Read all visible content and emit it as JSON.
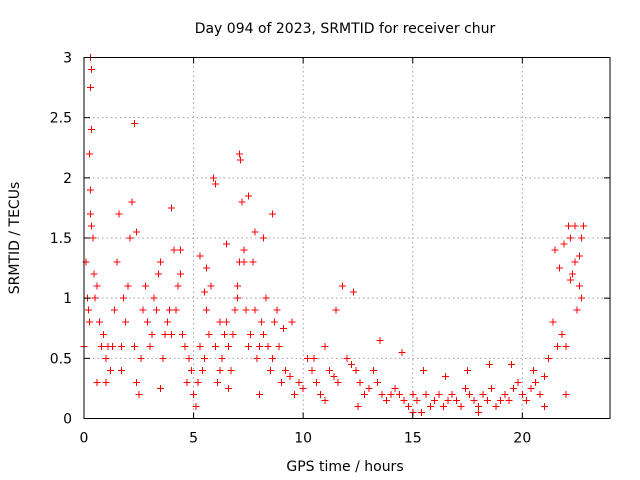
{
  "chart_data": {
    "type": "scatter",
    "title": "Day 094 of 2023, SRMTID for receiver chur",
    "xlabel": "GPS time / hours",
    "ylabel": "SRMTID / TECUs",
    "xlim": [
      0,
      24
    ],
    "ylim": [
      0,
      3
    ],
    "xticks": [
      0,
      5,
      10,
      15,
      20
    ],
    "xtick_labels": [
      "0",
      "5",
      "10",
      "15",
      "20"
    ],
    "yticks": [
      0,
      0.5,
      1,
      1.5,
      2,
      2.5,
      3
    ],
    "ytick_labels": [
      "0",
      "0.5",
      "1",
      "1.5",
      "2",
      "2.5",
      "3"
    ],
    "grid": true,
    "marker": "+",
    "color": "#ff0000",
    "series": [
      {
        "name": "SRMTID",
        "x": [
          0.0,
          0.1,
          0.15,
          0.2,
          0.25,
          0.3,
          0.3,
          0.35,
          0.4,
          0.45,
          0.5,
          0.6,
          0.7,
          0.8,
          0.9,
          1.0,
          1.1,
          1.2,
          1.3,
          1.4,
          1.5,
          1.6,
          1.7,
          1.8,
          1.9,
          2.0,
          2.1,
          2.2,
          2.3,
          2.4,
          2.5,
          2.6,
          2.7,
          2.8,
          2.9,
          3.0,
          3.1,
          3.2,
          3.3,
          3.4,
          3.5,
          3.6,
          3.7,
          3.8,
          3.9,
          4.0,
          4.1,
          4.2,
          4.3,
          4.4,
          4.5,
          4.6,
          4.7,
          4.8,
          4.9,
          5.0,
          5.1,
          5.2,
          5.3,
          5.4,
          5.5,
          5.6,
          5.7,
          5.8,
          5.9,
          6.0,
          6.1,
          6.2,
          6.3,
          6.4,
          6.5,
          6.6,
          6.7,
          6.8,
          6.9,
          7.0,
          7.1,
          7.2,
          7.3,
          7.4,
          7.5,
          7.6,
          7.7,
          7.8,
          7.9,
          8.0,
          8.1,
          8.2,
          8.3,
          8.4,
          8.5,
          8.6,
          8.7,
          8.8,
          8.9,
          9.0,
          9.2,
          9.4,
          9.6,
          9.8,
          10.0,
          10.2,
          10.4,
          10.6,
          10.8,
          11.0,
          11.2,
          11.4,
          11.6,
          11.8,
          12.0,
          12.2,
          12.4,
          12.6,
          12.8,
          13.0,
          13.2,
          13.4,
          13.6,
          13.8,
          14.0,
          14.2,
          14.4,
          14.6,
          14.8,
          15.0,
          15.2,
          15.4,
          15.6,
          15.8,
          16.0,
          16.2,
          16.4,
          16.6,
          16.8,
          17.0,
          17.2,
          17.4,
          17.6,
          17.8,
          18.0,
          18.2,
          18.4,
          18.6,
          18.8,
          19.0,
          19.2,
          19.4,
          19.6,
          19.8,
          20.0,
          20.2,
          20.4,
          20.6,
          20.8,
          21.0,
          21.2,
          21.4,
          21.6,
          21.8,
          22.0,
          22.1,
          22.2,
          22.3,
          22.4,
          22.5,
          22.6,
          22.7,
          22.8,
          0.25,
          0.3,
          0.35,
          7.1,
          7.15,
          7.5,
          6.0,
          5.6,
          0.3,
          0.35,
          2.3,
          2.4,
          4.0,
          4.4,
          5.3,
          5.5,
          6.2,
          6.5,
          7.0,
          7.3,
          7.8,
          8.2,
          8.6,
          9.1,
          9.5,
          10.5,
          11.5,
          12.3,
          13.5,
          14.5,
          15.5,
          16.5,
          17.5,
          18.5,
          19.5,
          20.5,
          21.5,
          21.7,
          21.9,
          22.2,
          22.4,
          22.6,
          22.7,
          0.6,
          1.0,
          1.7,
          3.5,
          6.6,
          8.0,
          11.0,
          12.5,
          15.0,
          18.0,
          21.0,
          22.0
        ],
        "y": [
          0.6,
          1.3,
          1.0,
          0.9,
          2.2,
          2.75,
          1.7,
          1.6,
          1.5,
          1.2,
          1.0,
          1.1,
          0.8,
          0.6,
          0.7,
          0.5,
          0.6,
          0.4,
          0.6,
          0.9,
          1.3,
          1.7,
          0.6,
          1.0,
          0.8,
          1.1,
          1.5,
          1.8,
          0.6,
          0.3,
          0.2,
          0.5,
          0.9,
          1.1,
          0.8,
          0.6,
          0.7,
          1.0,
          0.9,
          1.2,
          1.3,
          0.5,
          0.7,
          0.8,
          0.9,
          0.7,
          1.4,
          0.9,
          1.1,
          1.2,
          0.7,
          0.6,
          0.3,
          0.5,
          0.4,
          0.2,
          0.1,
          0.3,
          0.6,
          0.4,
          0.5,
          0.9,
          0.7,
          1.1,
          2.0,
          0.6,
          0.3,
          0.4,
          0.5,
          0.7,
          0.8,
          0.6,
          0.4,
          0.7,
          0.9,
          1.0,
          1.3,
          1.8,
          1.4,
          0.9,
          0.6,
          0.7,
          1.3,
          0.9,
          0.5,
          0.6,
          0.8,
          0.7,
          1.0,
          0.6,
          0.4,
          0.5,
          0.8,
          0.9,
          0.6,
          0.3,
          0.4,
          0.35,
          0.2,
          0.3,
          0.25,
          0.5,
          0.4,
          0.3,
          0.2,
          0.6,
          0.4,
          0.35,
          0.3,
          1.1,
          0.5,
          0.45,
          0.4,
          0.3,
          0.2,
          0.25,
          0.4,
          0.3,
          0.2,
          0.15,
          0.2,
          0.25,
          0.2,
          0.15,
          0.1,
          0.2,
          0.15,
          0.05,
          0.2,
          0.1,
          0.15,
          0.2,
          0.1,
          0.15,
          0.2,
          0.15,
          0.1,
          0.25,
          0.2,
          0.15,
          0.1,
          0.2,
          0.15,
          0.25,
          0.1,
          0.15,
          0.2,
          0.15,
          0.25,
          0.3,
          0.2,
          0.15,
          0.25,
          0.3,
          0.2,
          0.35,
          0.5,
          0.8,
          0.6,
          0.7,
          0.6,
          1.6,
          1.5,
          1.2,
          1.3,
          0.9,
          1.1,
          1.0,
          1.6,
          0.8,
          3.0,
          2.4,
          2.2,
          2.15,
          1.85,
          1.95,
          1.25,
          1.9,
          2.9,
          2.45,
          1.55,
          1.75,
          1.4,
          1.35,
          1.05,
          0.8,
          1.45,
          1.1,
          1.3,
          1.55,
          1.5,
          1.7,
          0.75,
          0.8,
          0.5,
          0.9,
          1.05,
          0.65,
          0.55,
          0.4,
          0.35,
          0.4,
          0.45,
          0.45,
          0.4,
          1.4,
          1.25,
          1.45,
          1.15,
          1.6,
          1.35,
          1.5,
          0.3,
          0.3,
          0.4,
          0.25,
          0.25,
          0.2,
          0.15,
          0.1,
          0.05,
          0.05,
          0.1,
          0.2
        ]
      }
    ]
  }
}
